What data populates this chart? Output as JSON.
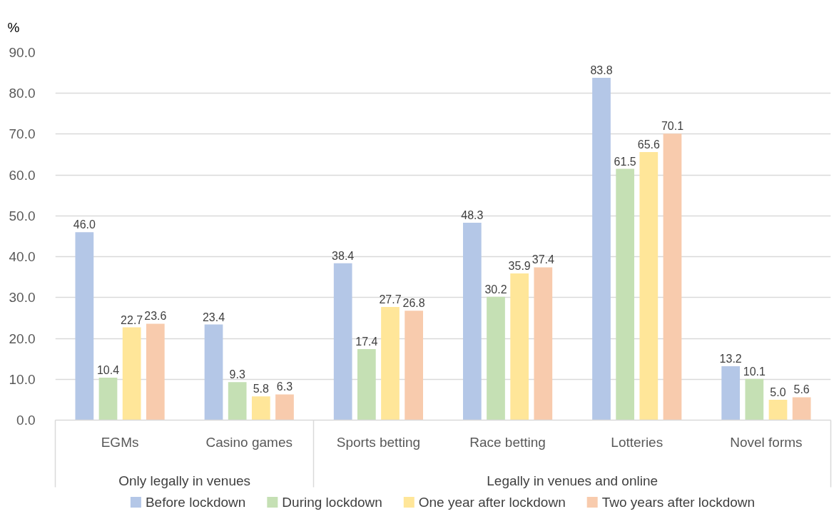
{
  "chart_data": {
    "type": "bar",
    "ylabel": "%",
    "categories": [
      "EGMs",
      "Casino games",
      "Sports betting",
      "Race betting",
      "Lotteries",
      "Novel forms"
    ],
    "series": [
      {
        "name": "Before lockdown",
        "color": "#b4c7e7",
        "values": [
          46.0,
          23.4,
          38.4,
          48.3,
          83.8,
          13.2
        ],
        "value_labels": [
          "46.0",
          "23.4",
          "38.4",
          "48.3",
          "83.8",
          "13.2"
        ]
      },
      {
        "name": "During lockdown",
        "color": "#c5e0b4",
        "values": [
          10.4,
          9.3,
          17.4,
          30.2,
          61.5,
          10.1
        ],
        "value_labels": [
          "10.4",
          "9.3",
          "17.4",
          "30.2",
          "61.5",
          "10.1"
        ]
      },
      {
        "name": "One year after lockdown",
        "color": "#ffe699",
        "values": [
          22.7,
          5.8,
          27.7,
          35.9,
          65.6,
          5.0
        ],
        "value_labels": [
          "22.7",
          "5.8",
          "27.7",
          "35.9",
          "65.6",
          "5.0"
        ]
      },
      {
        "name": "Two years after lockdown",
        "color": "#f8cbad",
        "values": [
          23.6,
          6.3,
          26.8,
          37.4,
          70.1,
          5.6
        ],
        "value_labels": [
          "23.6",
          "6.3",
          "26.8",
          "37.4",
          "70.1",
          "5.6"
        ]
      }
    ],
    "ylim": [
      0,
      90
    ],
    "yticks": [
      {
        "value": 0,
        "label": "0.0"
      },
      {
        "value": 10,
        "label": "10.0"
      },
      {
        "value": 20,
        "label": "20.0"
      },
      {
        "value": 30,
        "label": "30.0"
      },
      {
        "value": 40,
        "label": "40.0"
      },
      {
        "value": 50,
        "label": "50.0"
      },
      {
        "value": 60,
        "label": "60.0"
      },
      {
        "value": 70,
        "label": "70.0"
      },
      {
        "value": 80,
        "label": "80.0"
      },
      {
        "value": 90,
        "label": "90.0"
      }
    ],
    "grid": "y",
    "legend": "bottom",
    "annotations": [
      "Only legally in venues",
      "Legally in venues and online"
    ]
  }
}
